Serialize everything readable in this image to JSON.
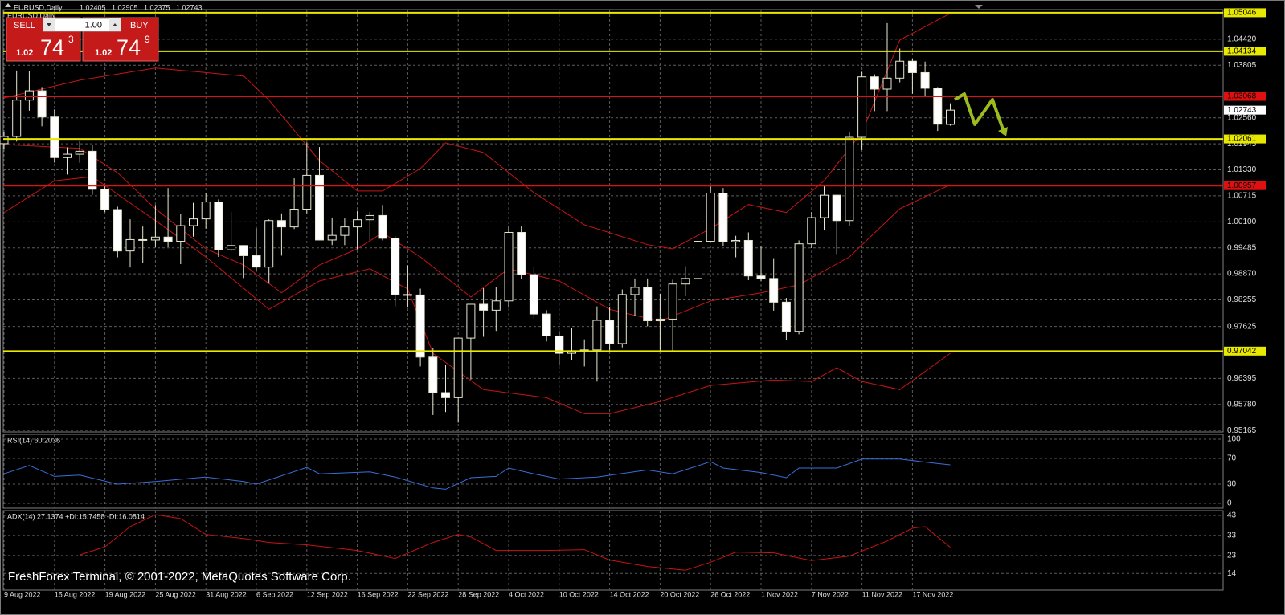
{
  "header": {
    "footer": "FreshForex Terminal, © 2001-2022, MetaQuotes Software Corp."
  },
  "trade_panel": {
    "sell": "SELL",
    "lot": "1.00",
    "buy": "BUY",
    "bid": [
      "1.02",
      "74",
      "3"
    ],
    "ask": [
      "1.02",
      "74",
      "9"
    ]
  },
  "chart_data": [
    {
      "type": "candlestick",
      "title": "EURUSD,Daily",
      "grid": true,
      "categories": [
        "9 Aug 2022",
        null,
        null,
        null,
        "15 Aug 2022",
        null,
        null,
        null,
        "19 Aug 2022",
        null,
        null,
        null,
        "25 Aug 2022",
        null,
        null,
        null,
        "31 Aug 2022",
        null,
        null,
        null,
        "6 Sep 2022",
        null,
        null,
        null,
        "12 Sep 2022",
        null,
        null,
        null,
        "16 Sep 2022",
        null,
        null,
        null,
        "22 Sep 2022",
        null,
        null,
        null,
        "28 Sep 2022",
        null,
        null,
        null,
        "4 Oct 2022",
        null,
        null,
        null,
        "10 Oct 2022",
        null,
        null,
        null,
        "14 Oct 2022",
        null,
        null,
        null,
        "20 Oct 2022",
        null,
        null,
        null,
        "26 Oct 2022",
        null,
        null,
        null,
        "1 Nov 2022",
        null,
        null,
        null,
        "7 Nov 2022",
        null,
        null,
        null,
        "11 Nov 2022",
        null,
        null,
        null,
        "17 Nov 2022",
        null,
        null,
        null
      ],
      "open": [
        1.0195,
        1.0212,
        1.0298,
        1.032,
        1.0258,
        1.0162,
        1.017,
        1.0177,
        1.0087,
        1.0039,
        0.9941,
        0.9968,
        0.9967,
        0.9974,
        0.9964,
        1.0001,
        1.0017,
        1.0057,
        0.9944,
        0.9954,
        0.993,
        0.9903,
        1.0013,
        0.9998,
        1.004,
        1.012,
        0.9967,
        0.9978,
        0.9998,
        1.0015,
        1.0025,
        0.9971,
        0.9838,
        0.9837,
        0.969,
        0.9606,
        0.9594,
        0.9735,
        0.9815,
        0.9801,
        0.9823,
        0.9985,
        0.9885,
        0.9792,
        0.974,
        0.9699,
        0.9705,
        0.9707,
        0.9777,
        0.9722,
        0.9838,
        0.9855,
        0.9776,
        0.978,
        0.9863,
        0.9876,
        0.9964,
        1.0078,
        0.9963,
        0.9966,
        0.9882,
        0.9876,
        0.982,
        0.9751,
        0.9958,
        1.002,
        1.0073,
        1.0013,
        1.021,
        1.0353,
        1.0324,
        1.035,
        1.039,
        1.0363,
        1.0326,
        1.02405
      ],
      "high": [
        1.0223,
        1.0368,
        1.0366,
        1.0329,
        1.0276,
        1.0186,
        1.0202,
        1.0191,
        1.0095,
        1.0046,
        1.0016,
        0.9999,
        1.005,
        1.009,
        1.0028,
        1.0055,
        1.0079,
        1.0063,
        1.0033,
        0.9955,
        0.9995,
        1.0016,
        1.003,
        1.0113,
        1.0198,
        1.0187,
        1.002,
        1.0018,
        1.0036,
        1.0034,
        1.005,
        0.9976,
        0.9907,
        0.9852,
        0.9712,
        0.9672,
        0.9735,
        0.9816,
        0.9853,
        0.9855,
        0.9999,
        0.9999,
        0.9904,
        0.9801,
        0.9752,
        0.976,
        0.9732,
        0.981,
        0.9808,
        0.985,
        0.9876,
        0.9876,
        0.984,
        0.9873,
        0.9905,
        0.9967,
        1.0094,
        1.009,
        0.9977,
        0.9985,
        0.9953,
        0.9924,
        0.983,
        0.9966,
        1.0033,
        1.0096,
        1.0074,
        1.0222,
        1.0365,
        1.0359,
        1.048,
        1.042,
        1.0396,
        1.0389,
        1.0329,
        1.02905
      ],
      "low": [
        1.0182,
        1.02,
        1.0273,
        1.0236,
        1.015,
        1.0122,
        1.015,
        1.0074,
        1.0033,
        0.9926,
        0.9902,
        0.9913,
        0.995,
        0.995,
        0.991,
        0.9975,
        0.9994,
        0.9927,
        0.994,
        0.9877,
        0.9895,
        0.9864,
        0.993,
        0.9993,
        1.003,
        0.9966,
        0.9955,
        0.9955,
        0.9945,
        0.9966,
        0.9966,
        0.981,
        0.9807,
        0.9668,
        0.9553,
        0.956,
        0.9535,
        0.9637,
        0.9738,
        0.9752,
        0.9807,
        0.9875,
        0.9781,
        0.9727,
        0.967,
        0.9684,
        0.9668,
        0.9632,
        0.9706,
        0.9713,
        0.9787,
        0.9763,
        0.9705,
        0.9705,
        0.9834,
        0.9853,
        0.9962,
        0.9953,
        0.9926,
        0.9872,
        0.987,
        0.98,
        0.973,
        0.9744,
        0.9948,
        0.999,
        0.9934,
        1.0,
        1.018,
        1.0272,
        1.0272,
        1.034,
        1.0313,
        1.0306,
        1.0225,
        1.02375
      ],
      "close": [
        1.0212,
        1.0298,
        1.032,
        1.0258,
        1.0162,
        1.017,
        1.0177,
        1.0087,
        1.0039,
        0.9941,
        0.9968,
        0.9967,
        0.9974,
        0.9964,
        1.0001,
        1.0017,
        1.0057,
        0.9944,
        0.9954,
        0.993,
        0.9903,
        1.0013,
        0.9998,
        1.004,
        1.012,
        0.9967,
        0.9978,
        0.9998,
        1.0015,
        1.0025,
        0.9971,
        0.9838,
        0.9837,
        0.969,
        0.9606,
        0.9594,
        0.9735,
        0.9815,
        0.9801,
        0.9823,
        0.9985,
        0.9885,
        0.9792,
        0.974,
        0.9699,
        0.9705,
        0.9707,
        0.9777,
        0.9722,
        0.9838,
        0.9855,
        0.9776,
        0.978,
        0.9863,
        0.9876,
        0.9964,
        1.0078,
        0.9963,
        0.9966,
        0.9882,
        0.9876,
        0.982,
        0.9751,
        0.9958,
        1.002,
        1.0073,
        1.0013,
        1.021,
        1.0353,
        1.0324,
        1.035,
        1.039,
        1.0363,
        1.0326,
        1.0241,
        1.02743
      ],
      "bull_color": "#000000",
      "bear_color": "#ffffff",
      "wick_color": "#e8e8d0",
      "series": [
        {
          "color": "#c81414",
          "x": [
            0,
            6,
            12,
            19,
            21,
            25,
            28,
            30,
            33,
            35,
            38,
            42,
            46,
            51,
            53,
            56,
            59,
            62,
            65,
            68,
            71,
            75
          ],
          "values": [
            1.0303,
            1.0345,
            1.0374,
            1.0355,
            1.0298,
            1.0155,
            1.0083,
            1.0083,
            1.0136,
            1.0197,
            1.0174,
            1.0079,
            1.0003,
            0.9956,
            0.9946,
            0.9994,
            1.0051,
            1.0032,
            1.0107,
            1.0222,
            1.044,
            1.0503
          ]
        },
        {
          "color": "#c81414",
          "x": [
            0,
            6,
            9,
            12,
            16,
            19,
            22,
            25,
            28,
            30,
            33,
            37,
            40,
            44,
            48,
            52,
            56,
            60,
            63,
            67,
            71,
            75
          ],
          "values": [
            1.0193,
            1.0184,
            1.0126,
            1.0041,
            0.9946,
            0.9908,
            0.9842,
            0.9908,
            0.9946,
            0.9984,
            0.9927,
            0.9832,
            0.9899,
            0.987,
            0.9803,
            0.9775,
            0.9823,
            0.9842,
            0.9861,
            0.9927,
            1.0041,
            1.0098
          ]
        },
        {
          "color": "#c81414",
          "x": [
            0,
            4,
            7,
            12,
            16,
            21,
            25,
            29,
            32,
            34,
            38,
            43,
            46,
            48,
            52,
            56,
            61,
            64,
            66,
            68,
            71,
            75
          ],
          "values": [
            1.0032,
            1.0107,
            1.0117,
            1.0013,
            0.9927,
            0.9803,
            0.987,
            0.9899,
            0.9851,
            0.9699,
            0.9613,
            0.9594,
            0.9556,
            0.9556,
            0.9585,
            0.9623,
            0.9636,
            0.9632,
            0.9665,
            0.9632,
            0.9613,
            0.9699
          ]
        }
      ],
      "levels": [
        {
          "value": 1.05046,
          "color": "#e8e800"
        },
        {
          "value": 1.04134,
          "color": "#e8e800"
        },
        {
          "value": 1.03068,
          "color": "#e01010"
        },
        {
          "value": 1.02061,
          "color": "#e8e800"
        },
        {
          "value": 1.00957,
          "color": "#e01010"
        },
        {
          "value": 0.97042,
          "color": "#e8e800"
        }
      ],
      "ylim": [
        0.9513,
        1.0512
      ],
      "yticks": [
        {
          "value": 1.0442,
          "label": "1.04420"
        },
        1.03805,
        {
          "value": 1.0256,
          "label": "1.02560"
        },
        1.01945,
        {
          "value": 1.0133,
          "label": "1.01330"
        },
        1.00715,
        {
          "value": 1.001,
          "label": "1.00100"
        },
        0.99485,
        {
          "value": 0.9887,
          "label": "0.98870"
        },
        0.98255,
        0.97625,
        0.96395,
        {
          "value": 0.9578,
          "label": "0.95780"
        },
        0.95165
      ]
    },
    {
      "type": "line",
      "title": "RSI(14) 60.2036",
      "grid": true,
      "ylim": [
        -7.5,
        107.5
      ],
      "yticks": [
        0,
        30,
        70,
        100
      ],
      "series": [
        {
          "color": "#3a6fd8",
          "x": [
            0,
            2,
            4,
            6,
            9,
            12,
            16,
            19,
            20,
            24,
            25,
            29,
            31,
            34,
            35,
            37,
            39,
            40,
            42,
            44,
            47,
            51,
            53,
            56,
            57,
            60,
            62,
            63,
            66,
            68,
            71,
            74,
            75
          ],
          "values": [
            46,
            59,
            42,
            44,
            30,
            34,
            41,
            34,
            30,
            56,
            46,
            49,
            41,
            24,
            22,
            40,
            42,
            55,
            46,
            38,
            41,
            52,
            46,
            65,
            55,
            48,
            40,
            55,
            55,
            69,
            69,
            62,
            60
          ]
        }
      ]
    },
    {
      "type": "line",
      "title": "ADX(14) 27.1374 +DI:15.7458 -DI:16.0814",
      "grid": true,
      "ylim": [
        5.7,
        45.4
      ],
      "yticks": [
        14,
        23,
        33,
        43
      ],
      "series": [
        {
          "color": "#c81414",
          "x": [
            6,
            8,
            10,
            12,
            14,
            16,
            19,
            21,
            24,
            28,
            31,
            34,
            36,
            37,
            39,
            43,
            46,
            48,
            51,
            54,
            56,
            58,
            61,
            64,
            67,
            70,
            72,
            73,
            75
          ],
          "values": [
            23.3,
            27.3,
            37.4,
            43.4,
            41.4,
            33.5,
            31.5,
            29.5,
            28.3,
            25.5,
            21.5,
            29.5,
            33.5,
            32.3,
            25.5,
            25.5,
            25.9,
            20.7,
            17.5,
            15.6,
            19.6,
            24.7,
            24.3,
            20.4,
            22.7,
            30.3,
            36.6,
            37.4,
            27.1
          ]
        }
      ]
    }
  ]
}
